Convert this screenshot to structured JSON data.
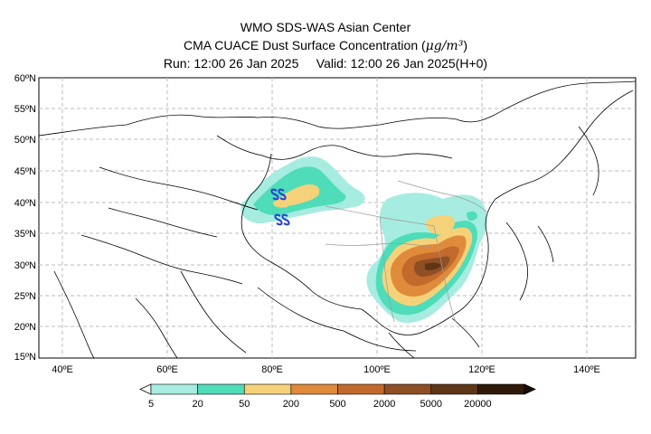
{
  "header": {
    "line1": "WMO SDS-WAS Asian Center",
    "line2_prefix": "CMA CUACE Dust Surface Concentration (",
    "line2_unit": "μg/m³",
    "line2_suffix": ")",
    "line3": "Run: 12:00 26 Jan 2025     Valid: 12:00 26 Jan 2025(H+0)"
  },
  "map": {
    "lat_labels": [
      "60ºN",
      "55ºN",
      "50ºN",
      "45ºN",
      "40ºN",
      "35ºN",
      "30ºN",
      "25ºN",
      "20ºN",
      "15ºN"
    ],
    "lon_labels": [
      "40ºE",
      "60ºE",
      "80ºE",
      "100ºE",
      "120ºE",
      "140ºE"
    ],
    "symbol": "dust-storm-symbol"
  },
  "colorbar": {
    "levels": [
      "5",
      "20",
      "50",
      "200",
      "500",
      "2000",
      "5000",
      "20000"
    ],
    "colors": [
      "#a6ece0",
      "#4fdcb9",
      "#f5d27a",
      "#e08a3c",
      "#c26a2b",
      "#8e4f24",
      "#5e3517",
      "#2f1a09"
    ]
  }
}
